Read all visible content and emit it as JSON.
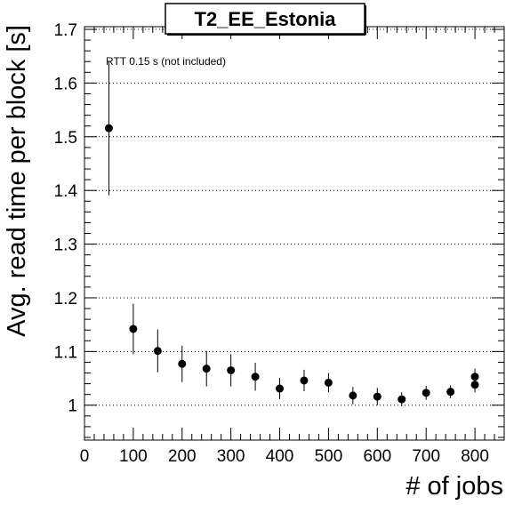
{
  "chart_data": {
    "type": "scatter",
    "title": "T2_EE_Estonia",
    "xlabel": "# of jobs",
    "ylabel": "Avg. read time per block [s]",
    "annotation": "RTT 0.15 s (not included)",
    "xlim": [
      0,
      860
    ],
    "ylim": [
      0.935,
      1.705
    ],
    "x_ticks": [
      0,
      100,
      200,
      300,
      400,
      500,
      600,
      700,
      800
    ],
    "x_tick_labels": [
      "0",
      "100",
      "200",
      "300",
      "400",
      "500",
      "600",
      "700",
      "800"
    ],
    "y_ticks": [
      1.0,
      1.1,
      1.2,
      1.3,
      1.4,
      1.5,
      1.6,
      1.7
    ],
    "y_tick_labels": [
      "1",
      "1.1",
      "1.2",
      "1.3",
      "1.4",
      "1.5",
      "1.6",
      "1.7"
    ],
    "grid": {
      "x": false,
      "y": true,
      "style": "dotted"
    },
    "series": [
      {
        "marker": "circle",
        "color": "#000000",
        "points": [
          {
            "x": 50,
            "y": 1.516,
            "err": 0.125
          },
          {
            "x": 100,
            "y": 1.142,
            "err": 0.047
          },
          {
            "x": 150,
            "y": 1.101,
            "err": 0.04
          },
          {
            "x": 200,
            "y": 1.077,
            "err": 0.034
          },
          {
            "x": 250,
            "y": 1.068,
            "err": 0.033
          },
          {
            "x": 300,
            "y": 1.065,
            "err": 0.03
          },
          {
            "x": 350,
            "y": 1.053,
            "err": 0.026
          },
          {
            "x": 400,
            "y": 1.031,
            "err": 0.02
          },
          {
            "x": 450,
            "y": 1.046,
            "err": 0.02
          },
          {
            "x": 500,
            "y": 1.042,
            "err": 0.018
          },
          {
            "x": 550,
            "y": 1.018,
            "err": 0.016
          },
          {
            "x": 600,
            "y": 1.016,
            "err": 0.016
          },
          {
            "x": 650,
            "y": 1.011,
            "err": 0.013
          },
          {
            "x": 700,
            "y": 1.023,
            "err": 0.013
          },
          {
            "x": 750,
            "y": 1.025,
            "err": 0.012
          },
          {
            "x": 800,
            "y": 1.053,
            "err": 0.015
          },
          {
            "x": 800,
            "y": 1.038,
            "err": 0.014
          }
        ]
      }
    ]
  }
}
